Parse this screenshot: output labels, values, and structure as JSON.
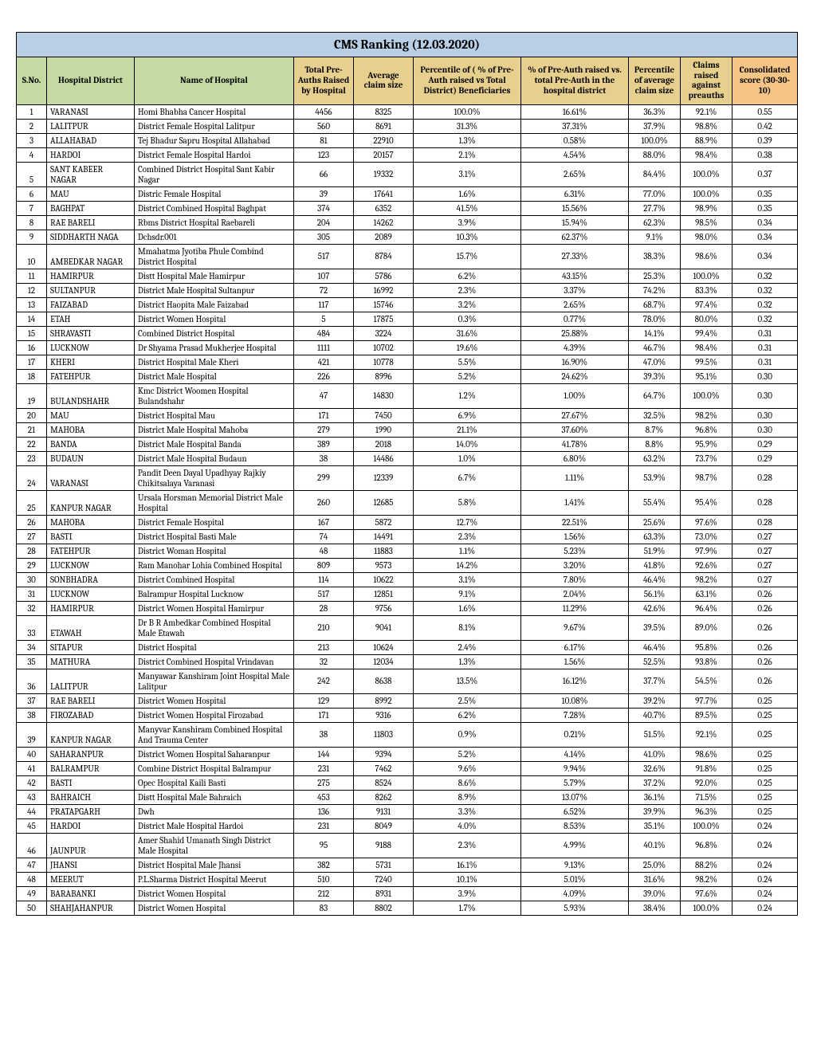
{
  "title": "CMS Ranking (12.03.2020)",
  "columns": [
    {
      "label": "S.No.",
      "class": "bg-green",
      "width": "w-sno"
    },
    {
      "label": "Hospital District",
      "class": "bg-green",
      "width": "w-dist"
    },
    {
      "label": "Name of Hospital",
      "class": "bg-green",
      "width": "w-hosp"
    },
    {
      "label": "Total Pre-Auths Raised by Hospital",
      "class": "bg-gold",
      "width": "w-auths"
    },
    {
      "label": "Average claim size",
      "class": "bg-gold",
      "width": "w-claim"
    },
    {
      "label": "Percentile of ( % of Pre-Auth raised vs Total District) Beneficiaries",
      "class": "bg-gold",
      "width": "w-pct1"
    },
    {
      "label": "% of Pre-Auth raised vs. total Pre-Auth in the hospital district",
      "class": "bg-gold",
      "width": "w-pct2"
    },
    {
      "label": "Percentile of average claim size",
      "class": "bg-gold",
      "width": "w-pct3"
    },
    {
      "label": "Claims raised against preauths",
      "class": "bg-gold",
      "width": "w-pct4"
    },
    {
      "label": "Consolidated score (30-30-10)",
      "class": "bg-orange",
      "width": "w-score"
    }
  ],
  "rows": [
    [
      "1",
      "VARANASI",
      "Homi Bhabha Cancer Hospital",
      "4456",
      "8325",
      "100.0%",
      "16.61%",
      "36.3%",
      "92.1%",
      "0.55"
    ],
    [
      "2",
      "LALITPUR",
      "District Female Hospital Lalitpur",
      "560",
      "8691",
      "31.3%",
      "37.31%",
      "37.9%",
      "98.8%",
      "0.42"
    ],
    [
      "3",
      "ALLAHABAD",
      "Tej Bhadur Sapru Hospital Allahabad",
      "81",
      "22910",
      "1.3%",
      "0.58%",
      "100.0%",
      "88.9%",
      "0.39"
    ],
    [
      "4",
      "HARDOI",
      "District Female Hospital Hardoi",
      "123",
      "20157",
      "2.1%",
      "4.54%",
      "88.0%",
      "98.4%",
      "0.38"
    ],
    [
      "5",
      "SANT KABEER NAGAR",
      "Combined District Hospital Sant Kabir Nagar",
      "66",
      "19332",
      "3.1%",
      "2.65%",
      "84.4%",
      "100.0%",
      "0.37"
    ],
    [
      "6",
      "MAU",
      "Distric Female Hospital",
      "39",
      "17641",
      "1.6%",
      "6.31%",
      "77.0%",
      "100.0%",
      "0.35"
    ],
    [
      "7",
      "BAGHPAT",
      "District Combined Hospital Baghpat",
      "374",
      "6352",
      "41.5%",
      "15.56%",
      "27.7%",
      "98.9%",
      "0.35"
    ],
    [
      "8",
      "RAE BARELI",
      "Rbms District Hospital Raebareli",
      "204",
      "14262",
      "3.9%",
      "15.94%",
      "62.3%",
      "98.5%",
      "0.34"
    ],
    [
      "9",
      "SIDDHARTH NAGA",
      "Dchsdr.001",
      "305",
      "2089",
      "10.3%",
      "62.37%",
      "9.1%",
      "98.0%",
      "0.34"
    ],
    [
      "10",
      "AMBEDKAR NAGAR",
      "Mmahatma Jyotiba Phule Combind District Hospital",
      "517",
      "8784",
      "15.7%",
      "27.33%",
      "38.3%",
      "98.6%",
      "0.34"
    ],
    [
      "11",
      "HAMIRPUR",
      "Distt Hospital Male Hamirpur",
      "107",
      "5786",
      "6.2%",
      "43.15%",
      "25.3%",
      "100.0%",
      "0.32"
    ],
    [
      "12",
      "SULTANPUR",
      "District Male Hospital Sultanpur",
      "72",
      "16992",
      "2.3%",
      "3.37%",
      "74.2%",
      "83.3%",
      "0.32"
    ],
    [
      "13",
      "FAIZABAD",
      "District Haopita Male Faizabad",
      "117",
      "15746",
      "3.2%",
      "2.65%",
      "68.7%",
      "97.4%",
      "0.32"
    ],
    [
      "14",
      "ETAH",
      "District Women Hospital",
      "5",
      "17875",
      "0.3%",
      "0.77%",
      "78.0%",
      "80.0%",
      "0.32"
    ],
    [
      "15",
      "SHRAVASTI",
      "Combined District Hospital",
      "484",
      "3224",
      "31.6%",
      "25.88%",
      "14.1%",
      "99.4%",
      "0.31"
    ],
    [
      "16",
      "LUCKNOW",
      "Dr Shyama Prasad Mukherjee Hospital",
      "1111",
      "10702",
      "19.6%",
      "4.39%",
      "46.7%",
      "98.4%",
      "0.31"
    ],
    [
      "17",
      "KHERI",
      "District Hospital Male Kheri",
      "421",
      "10778",
      "5.5%",
      "16.90%",
      "47.0%",
      "99.5%",
      "0.31"
    ],
    [
      "18",
      "FATEHPUR",
      "District Male  Hospital",
      "226",
      "8996",
      "5.2%",
      "24.62%",
      "39.3%",
      "95.1%",
      "0.30"
    ],
    [
      "19",
      "BULANDSHAHR",
      "Kmc District Woomen Hospital Bulandshahr",
      "47",
      "14830",
      "1.2%",
      "1.00%",
      "64.7%",
      "100.0%",
      "0.30"
    ],
    [
      "20",
      "MAU",
      "District Hospital Mau",
      "171",
      "7450",
      "6.9%",
      "27.67%",
      "32.5%",
      "98.2%",
      "0.30"
    ],
    [
      "21",
      "MAHOBA",
      "District Male Hospital Mahoba",
      "279",
      "1990",
      "21.1%",
      "37.60%",
      "8.7%",
      "96.8%",
      "0.30"
    ],
    [
      "22",
      "BANDA",
      "District Male Hospital Banda",
      "389",
      "2018",
      "14.0%",
      "41.78%",
      "8.8%",
      "95.9%",
      "0.29"
    ],
    [
      "23",
      "BUDAUN",
      "District Male Hospital Budaun",
      "38",
      "14486",
      "1.0%",
      "6.80%",
      "63.2%",
      "73.7%",
      "0.29"
    ],
    [
      "24",
      "VARANASI",
      "Pandit Deen Dayal Upadhyay Rajkiy Chikitsalaya Varanasi",
      "299",
      "12339",
      "6.7%",
      "1.11%",
      "53.9%",
      "98.7%",
      "0.28"
    ],
    [
      "25",
      "KANPUR NAGAR",
      "Ursala Horsman Memorial District Male Hospital",
      "260",
      "12685",
      "5.8%",
      "1.41%",
      "55.4%",
      "95.4%",
      "0.28"
    ],
    [
      "26",
      "MAHOBA",
      "District Female Hospital",
      "167",
      "5872",
      "12.7%",
      "22.51%",
      "25.6%",
      "97.6%",
      "0.28"
    ],
    [
      "27",
      "BASTI",
      "District  Hospital Basti Male",
      "74",
      "14491",
      "2.3%",
      "1.56%",
      "63.3%",
      "73.0%",
      "0.27"
    ],
    [
      "28",
      "FATEHPUR",
      "District Woman Hospital",
      "48",
      "11883",
      "1.1%",
      "5.23%",
      "51.9%",
      "97.9%",
      "0.27"
    ],
    [
      "29",
      "LUCKNOW",
      "Ram Manohar Lohia Combined Hospital",
      "809",
      "9573",
      "14.2%",
      "3.20%",
      "41.8%",
      "92.6%",
      "0.27"
    ],
    [
      "30",
      "SONBHADRA",
      "District Combined Hospital",
      "114",
      "10622",
      "3.1%",
      "7.80%",
      "46.4%",
      "98.2%",
      "0.27"
    ],
    [
      "31",
      "LUCKNOW",
      "Balrampur Hospital Lucknow",
      "517",
      "12851",
      "9.1%",
      "2.04%",
      "56.1%",
      "63.1%",
      "0.26"
    ],
    [
      "32",
      "HAMIRPUR",
      "District Women Hospital Hamirpur",
      "28",
      "9756",
      "1.6%",
      "11.29%",
      "42.6%",
      "96.4%",
      "0.26"
    ],
    [
      "33",
      "ETAWAH",
      "Dr B R Ambedkar Combined Hospital Male Etawah",
      "210",
      "9041",
      "8.1%",
      "9.67%",
      "39.5%",
      "89.0%",
      "0.26"
    ],
    [
      "34",
      "SITAPUR",
      "District Hospital",
      "213",
      "10624",
      "2.4%",
      "6.17%",
      "46.4%",
      "95.8%",
      "0.26"
    ],
    [
      "35",
      "MATHURA",
      "District Combined Hospital Vrindavan",
      "32",
      "12034",
      "1.3%",
      "1.56%",
      "52.5%",
      "93.8%",
      "0.26"
    ],
    [
      "36",
      "LALITPUR",
      "Manyawar Kanshiram Joint Hospital Male Lalitpur",
      "242",
      "8638",
      "13.5%",
      "16.12%",
      "37.7%",
      "54.5%",
      "0.26"
    ],
    [
      "37",
      "RAE BARELI",
      "District Women Hospital",
      "129",
      "8992",
      "2.5%",
      "10.08%",
      "39.2%",
      "97.7%",
      "0.25"
    ],
    [
      "38",
      "FIROZABAD",
      "District  Women Hospital Firozabad",
      "171",
      "9316",
      "6.2%",
      "7.28%",
      "40.7%",
      "89.5%",
      "0.25"
    ],
    [
      "39",
      "KANPUR NAGAR",
      "Manyvar Kanshiram Combined Hospital And Trauma Center",
      "38",
      "11803",
      "0.9%",
      "0.21%",
      "51.5%",
      "92.1%",
      "0.25"
    ],
    [
      "40",
      "SAHARANPUR",
      "District Women Hospital Saharanpur",
      "144",
      "9394",
      "5.2%",
      "4.14%",
      "41.0%",
      "98.6%",
      "0.25"
    ],
    [
      "41",
      "BALRAMPUR",
      "Combine District Hospital Balrampur",
      "231",
      "7462",
      "9.6%",
      "9.94%",
      "32.6%",
      "91.8%",
      "0.25"
    ],
    [
      "42",
      "BASTI",
      "Opec Hospital Kaili Basti",
      "275",
      "8524",
      "8.6%",
      "5.79%",
      "37.2%",
      "92.0%",
      "0.25"
    ],
    [
      "43",
      "BAHRAICH",
      "Distt Hospital Male Bahraich",
      "453",
      "8262",
      "8.9%",
      "13.07%",
      "36.1%",
      "71.5%",
      "0.25"
    ],
    [
      "44",
      "PRATAPGARH",
      "Dwh",
      "136",
      "9131",
      "3.3%",
      "6.52%",
      "39.9%",
      "96.3%",
      "0.25"
    ],
    [
      "45",
      "HARDOI",
      "District Male Hospital Hardoi",
      "231",
      "8049",
      "4.0%",
      "8.53%",
      "35.1%",
      "100.0%",
      "0.24"
    ],
    [
      "46",
      "JAUNPUR",
      "Amer Shahid Umanath Singh District Male Hospital",
      "95",
      "9188",
      "2.3%",
      "4.99%",
      "40.1%",
      "96.8%",
      "0.24"
    ],
    [
      "47",
      "JHANSI",
      "District Hospital Male Jhansi",
      "382",
      "5731",
      "16.1%",
      "9.13%",
      "25.0%",
      "88.2%",
      "0.24"
    ],
    [
      "48",
      "MEERUT",
      "P.L.Sharma District Hospital Meerut",
      "510",
      "7240",
      "10.1%",
      "5.01%",
      "31.6%",
      "98.2%",
      "0.24"
    ],
    [
      "49",
      "BARABANKI",
      "District Women Hospital",
      "212",
      "8931",
      "3.9%",
      "4.09%",
      "39.0%",
      "97.6%",
      "0.24"
    ],
    [
      "50",
      "SHAHJAHANPUR",
      "District Women Hospital",
      "83",
      "8802",
      "1.7%",
      "5.93%",
      "38.4%",
      "100.0%",
      "0.24"
    ]
  ],
  "style": {
    "title_bg": "#b8cfe6",
    "green_bg": "#c5d9a2",
    "gold_bg": "#e7cf8e",
    "orange_bg": "#f4c584",
    "border_color": "#000000",
    "font_family": "Cambria, Georgia, serif",
    "body_fontsize": 11,
    "title_fontsize": 16
  }
}
